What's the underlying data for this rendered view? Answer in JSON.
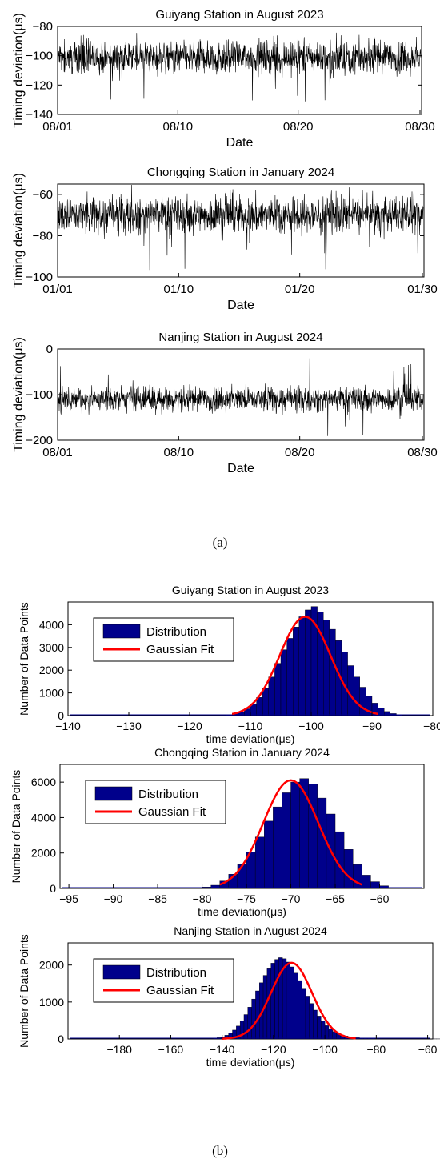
{
  "figure": {
    "caption_a": "(a)",
    "caption_b": "(b)"
  },
  "chart_data": [
    {
      "type": "line",
      "title": "Guiyang Station in August 2023",
      "xlabel": "Date",
      "ylabel": "Timing deviation(μs)",
      "xticks": [
        "08/01",
        "08/10",
        "08/20",
        "08/30"
      ],
      "yticks": [
        -80,
        -100,
        -120,
        -140
      ],
      "ylim": [
        -140,
        -80
      ],
      "series_summary": {
        "center": -101,
        "band": 5,
        "spike_min": -132,
        "spike_max": -83
      },
      "grid": false
    },
    {
      "type": "line",
      "title": "Chongqing Station in January 2024",
      "xlabel": "Date",
      "ylabel": "Timing deviation(μs)",
      "xticks": [
        "01/01",
        "01/10",
        "01/20",
        "01/30"
      ],
      "yticks": [
        -60,
        -80,
        -100
      ],
      "ylim": [
        -100,
        -55
      ],
      "series_summary": {
        "center": -70,
        "band": 4,
        "spike_min": -97,
        "spike_max": -55
      },
      "grid": false
    },
    {
      "type": "line",
      "title": "Nanjing Station in August 2024",
      "xlabel": "Date",
      "ylabel": "Timing deviation(μs)",
      "xticks": [
        "08/01",
        "08/10",
        "08/20",
        "08/30"
      ],
      "yticks": [
        0,
        -100,
        -200
      ],
      "ylim": [
        -200,
        0
      ],
      "series_summary": {
        "center": -110,
        "band": 12,
        "spike_min": -192,
        "spike_max": -18
      },
      "grid": false
    },
    {
      "type": "bar",
      "title": "Guiyang Station in August 2023",
      "xlabel": "time deviation(μs)",
      "ylabel": "Number of Data Points",
      "xticks": [
        -140,
        -130,
        -120,
        -110,
        -100,
        -90,
        -80
      ],
      "yticks": [
        0,
        1000,
        2000,
        3000,
        4000
      ],
      "xlim": [
        -140,
        -80
      ],
      "ylim": [
        0,
        5000
      ],
      "histogram": {
        "bin_start": -115,
        "bin_width": 1,
        "values": [
          20,
          40,
          90,
          160,
          300,
          500,
          800,
          1200,
          1700,
          2300,
          2900,
          3400,
          3900,
          4350,
          4650,
          4800,
          4550,
          4200,
          3800,
          3300,
          2800,
          2200,
          1700,
          1250,
          850,
          550,
          330,
          180,
          90,
          40,
          15
        ]
      },
      "fit": {
        "name": "Gaussian Fit",
        "mean": -101,
        "sigma": 4.2,
        "peak": 4350,
        "range": [
          -113,
          -89
        ]
      },
      "legend": [
        "Distribution",
        "Gaussian Fit"
      ],
      "legend_position": "top-left"
    },
    {
      "type": "bar",
      "title": "Chongqing Station in January 2024",
      "xlabel": "time deviation(μs)",
      "ylabel": "Number of Data Points",
      "xticks": [
        -95,
        -90,
        -85,
        -80,
        -75,
        -70,
        -65,
        -60
      ],
      "yticks": [
        0,
        2000,
        4000,
        6000
      ],
      "xlim": [
        -96,
        -55
      ],
      "ylim": [
        0,
        7000
      ],
      "histogram": {
        "bin_start": -80,
        "bin_width": 1,
        "values": [
          80,
          180,
          420,
          800,
          1350,
          2050,
          2900,
          3800,
          4600,
          5400,
          6000,
          6200,
          5900,
          5100,
          4200,
          3200,
          2200,
          1350,
          750,
          380,
          150
        ]
      },
      "fit": {
        "name": "Gaussian Fit",
        "mean": -70,
        "sigma": 3.1,
        "peak": 6100,
        "range": [
          -78,
          -62
        ]
      },
      "legend": [
        "Distribution",
        "Gaussian Fit"
      ],
      "legend_position": "top-left"
    },
    {
      "type": "bar",
      "title": "Nanjing Station in August 2024",
      "xlabel": "time deviation(μs)",
      "ylabel": "Number of Data Points",
      "xticks": [
        -180,
        -160,
        -140,
        -120,
        -100,
        -80,
        -60
      ],
      "yticks": [
        0,
        1000,
        2000
      ],
      "xlim": [
        -200,
        -58
      ],
      "ylim": [
        0,
        2600
      ],
      "histogram": {
        "bin_start": -145,
        "bin_width": 1.5,
        "values": [
          10,
          20,
          35,
          60,
          100,
          160,
          240,
          350,
          490,
          660,
          860,
          1080,
          1300,
          1520,
          1720,
          1900,
          2050,
          2150,
          2200,
          2170,
          2080,
          1950,
          1780,
          1580,
          1370,
          1160,
          960,
          780,
          620,
          480,
          360,
          270,
          200,
          145,
          105,
          80,
          60,
          45,
          35,
          28,
          22,
          18,
          15,
          12,
          10,
          8,
          7,
          6,
          5,
          5,
          4,
          4,
          3,
          3,
          3,
          2,
          2,
          2,
          2,
          2
        ]
      },
      "fit": {
        "name": "Gaussian Fit",
        "mean": -113,
        "sigma": 8.0,
        "peak": 2060,
        "range": [
          -140,
          -88
        ]
      },
      "legend": [
        "Distribution",
        "Gaussian Fit"
      ],
      "legend_position": "top-left"
    }
  ]
}
